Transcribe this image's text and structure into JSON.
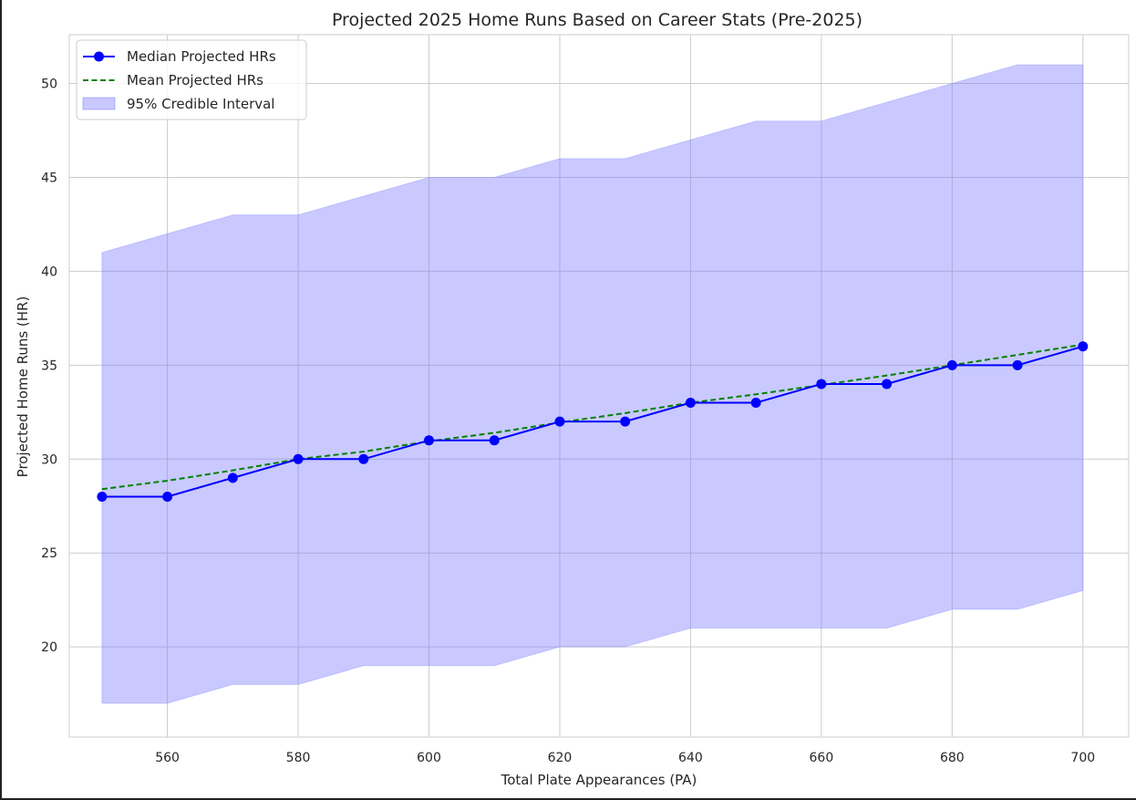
{
  "chart_data": {
    "type": "line",
    "title": "Projected 2025 Home Runs Based on Career Stats (Pre-2025)",
    "xlabel": "Total Plate Appearances (PA)",
    "ylabel": "Projected Home Runs (HR)",
    "xlim": [
      545,
      707
    ],
    "ylim": [
      15.2,
      52.6
    ],
    "xticks": [
      560,
      580,
      600,
      620,
      640,
      660,
      680,
      700
    ],
    "yticks": [
      20,
      25,
      30,
      35,
      40,
      45,
      50
    ],
    "x": [
      550,
      560,
      570,
      580,
      590,
      600,
      610,
      620,
      630,
      640,
      650,
      660,
      670,
      680,
      690,
      700
    ],
    "series": [
      {
        "name": "Median Projected HRs",
        "style": "solid-line-with-circle-markers",
        "color": "#0000ff",
        "values": [
          28,
          28,
          29,
          30,
          30,
          31,
          31,
          32,
          32,
          33,
          33,
          34,
          34,
          35,
          35,
          36
        ]
      },
      {
        "name": "Mean Projected HRs",
        "style": "dashed-line",
        "color": "#008000",
        "values": [
          28.4,
          28.85,
          29.4,
          30.0,
          30.4,
          30.95,
          31.4,
          31.95,
          32.45,
          33.0,
          33.45,
          33.95,
          34.45,
          35.0,
          35.55,
          36.1
        ]
      }
    ],
    "band": {
      "name": "95% Credible Interval",
      "color": "#7777ff",
      "opacity": 0.4,
      "lower": [
        17,
        17,
        18,
        18,
        19,
        19,
        19,
        20,
        20,
        21,
        21,
        21,
        21,
        22,
        22,
        23
      ],
      "upper": [
        41,
        42,
        43,
        43,
        44,
        45,
        45,
        46,
        46,
        47,
        48,
        48,
        49,
        50,
        51,
        51
      ]
    },
    "grid": true,
    "legend_position": "top-left"
  }
}
